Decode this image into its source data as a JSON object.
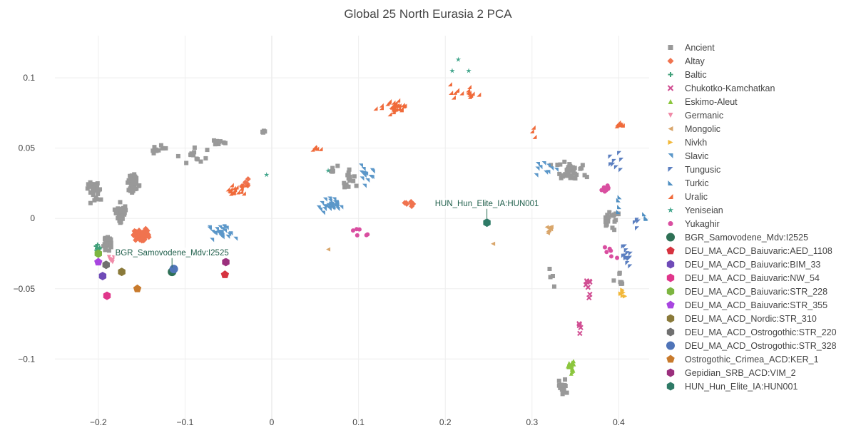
{
  "chart_data": {
    "type": "scatter",
    "title": "Global 25 North Eurasia 2 PCA",
    "xlim": [
      -0.25,
      0.435
    ],
    "ylim": [
      -0.145,
      0.13
    ],
    "x_ticks": [
      -0.2,
      -0.1,
      0,
      0.1,
      0.2,
      0.3,
      0.4
    ],
    "x_tick_labels": [
      "−0.2",
      "−0.1",
      "0",
      "0.1",
      "0.2",
      "0.3",
      "0.4"
    ],
    "y_ticks": [
      -0.1,
      -0.05,
      0,
      0.05,
      0.1
    ],
    "y_tick_labels": [
      "−0.1",
      "−0.05",
      "0",
      "0.05",
      "0.1"
    ],
    "grid": true,
    "legend_position": "right",
    "population_clusters": [
      {
        "name": "Ancient",
        "marker": "square",
        "color": "#999999",
        "clusters": [
          [
            -0.205,
            0.02,
            0.012,
            0.012,
            30
          ],
          [
            -0.16,
            0.025,
            0.012,
            0.012,
            40
          ],
          [
            -0.175,
            0.003,
            0.01,
            0.01,
            40
          ],
          [
            -0.19,
            -0.018,
            0.008,
            0.008,
            25
          ],
          [
            -0.13,
            0.05,
            0.012,
            0.005,
            10
          ],
          [
            -0.09,
            0.045,
            0.025,
            0.008,
            14
          ],
          [
            -0.06,
            0.055,
            0.015,
            0.004,
            10
          ],
          [
            -0.01,
            0.062,
            0.01,
            0.003,
            5
          ],
          [
            0.09,
            0.03,
            0.015,
            0.015,
            14
          ],
          [
            0.07,
            0.035,
            0.01,
            0.005,
            5
          ],
          [
            0.34,
            0.035,
            0.03,
            0.01,
            35
          ],
          [
            0.39,
            0.0,
            0.015,
            0.012,
            20
          ],
          [
            0.335,
            -0.12,
            0.008,
            0.008,
            18
          ],
          [
            0.4,
            -0.045,
            0.008,
            0.008,
            8
          ],
          [
            0.32,
            -0.04,
            0.01,
            0.015,
            4
          ]
        ]
      },
      {
        "name": "Altay",
        "marker": "diamond",
        "color": "#f0734f",
        "clusters": [
          [
            -0.15,
            -0.012,
            0.012,
            0.006,
            60
          ],
          [
            0.16,
            0.01,
            0.015,
            0.006,
            8
          ],
          [
            -0.03,
            0.025,
            0.008,
            0.005,
            6
          ]
        ]
      },
      {
        "name": "Baltic",
        "marker": "cross",
        "color": "#40a07a",
        "clusters": [
          [
            -0.2,
            -0.022,
            0.004,
            0.004,
            10
          ]
        ]
      },
      {
        "name": "Chukotko-Kamchatkan",
        "marker": "x",
        "color": "#d14f93",
        "clusters": [
          [
            0.365,
            -0.05,
            0.008,
            0.01,
            8
          ],
          [
            0.355,
            -0.075,
            0.003,
            0.008,
            5
          ]
        ]
      },
      {
        "name": "Eskimo-Aleut",
        "marker": "triangle-up",
        "color": "#8cc63e",
        "clusters": [
          [
            0.345,
            -0.105,
            0.006,
            0.01,
            20
          ]
        ]
      },
      {
        "name": "Germanic",
        "marker": "triangle-down",
        "color": "#f08ba8",
        "clusters": [
          [
            -0.185,
            -0.03,
            0.006,
            0.005,
            6
          ]
        ]
      },
      {
        "name": "Mongolic",
        "marker": "triangle-left",
        "color": "#d9a66b",
        "clusters": [
          [
            0.32,
            -0.008,
            0.006,
            0.004,
            8
          ],
          [
            0.065,
            -0.022,
            0.001,
            0.001,
            1
          ],
          [
            0.255,
            -0.018,
            0.001,
            0.001,
            1
          ]
        ]
      },
      {
        "name": "Nivkh",
        "marker": "triangle-right",
        "color": "#f2b83a",
        "clusters": [
          [
            0.405,
            -0.053,
            0.006,
            0.006,
            8
          ]
        ]
      },
      {
        "name": "Slavic",
        "marker": "triangle-ne",
        "color": "#5b97c9",
        "clusters": [
          [
            0.07,
            0.01,
            0.02,
            0.007,
            35
          ],
          [
            -0.06,
            -0.01,
            0.025,
            0.01,
            25
          ],
          [
            0.11,
            0.03,
            0.015,
            0.01,
            14
          ],
          [
            0.315,
            0.035,
            0.02,
            0.01,
            10
          ]
        ]
      },
      {
        "name": "Tungusic",
        "marker": "triangle-nw",
        "color": "#5b7fc0",
        "clusters": [
          [
            0.41,
            -0.025,
            0.01,
            0.015,
            14
          ],
          [
            0.395,
            0.04,
            0.015,
            0.01,
            8
          ],
          [
            0.42,
            0.0,
            0.008,
            0.008,
            4
          ]
        ]
      },
      {
        "name": "Turkic",
        "marker": "triangle-sw",
        "color": "#4f8fc2",
        "clusters": [
          [
            0.43,
            0.0,
            0.004,
            0.004,
            3
          ],
          [
            0.4,
            0.01,
            0.008,
            0.008,
            4
          ]
        ]
      },
      {
        "name": "Uralic",
        "marker": "triangle-se",
        "color": "#f06a3a",
        "clusters": [
          [
            0.14,
            0.08,
            0.025,
            0.007,
            30
          ],
          [
            0.22,
            0.09,
            0.025,
            0.007,
            16
          ],
          [
            0.4,
            0.067,
            0.01,
            0.003,
            12
          ],
          [
            -0.04,
            0.02,
            0.02,
            0.006,
            18
          ],
          [
            0.05,
            0.05,
            0.01,
            0.004,
            5
          ],
          [
            0.3,
            0.06,
            0.005,
            0.01,
            3
          ]
        ]
      },
      {
        "name": "Yeniseian",
        "marker": "star",
        "color": "#3fa48a",
        "clusters": [
          [
            0.215,
            0.113,
            0.001,
            0.001,
            1
          ],
          [
            0.208,
            0.105,
            0.001,
            0.001,
            1
          ],
          [
            0.227,
            0.105,
            0.001,
            0.001,
            1
          ],
          [
            0.065,
            0.034,
            0.001,
            0.001,
            1
          ],
          [
            -0.006,
            0.031,
            0.001,
            0.001,
            1
          ]
        ]
      },
      {
        "name": "Yukaghir",
        "marker": "circle",
        "color": "#d94ea0",
        "clusters": [
          [
            0.385,
            0.022,
            0.008,
            0.004,
            8
          ],
          [
            0.1,
            -0.01,
            0.02,
            0.005,
            6
          ],
          [
            0.39,
            -0.025,
            0.01,
            0.008,
            6
          ]
        ]
      }
    ],
    "samples": [
      {
        "name": "BGR_Samovodene_Mdv:I2525",
        "marker": "circle",
        "color": "#2e7055",
        "x": -0.115,
        "y": -0.038
      },
      {
        "name": "DEU_MA_ACD_Baiuvaric:AED_1108",
        "marker": "pentagon",
        "color": "#d63340",
        "x": -0.054,
        "y": -0.04
      },
      {
        "name": "DEU_MA_ACD_Baiuvaric:BIM_33",
        "marker": "hexagon",
        "color": "#6f4bb8",
        "x": -0.195,
        "y": -0.041
      },
      {
        "name": "DEU_MA_ACD_Baiuvaric:NW_54",
        "marker": "hexagon",
        "color": "#e0368b",
        "x": -0.19,
        "y": -0.055
      },
      {
        "name": "DEU_MA_ACD_Baiuvaric:STR_228",
        "marker": "hexagon",
        "color": "#7db541",
        "x": -0.2,
        "y": -0.025
      },
      {
        "name": "DEU_MA_ACD_Baiuvaric:STR_355",
        "marker": "pentagon",
        "color": "#a845e0",
        "x": -0.2,
        "y": -0.031
      },
      {
        "name": "DEU_MA_ACD_Nordic:STR_310",
        "marker": "hexagon",
        "color": "#8a7a3a",
        "x": -0.173,
        "y": -0.038
      },
      {
        "name": "DEU_MA_ACD_Ostrogothic:STR_220",
        "marker": "hexagon",
        "color": "#707070",
        "x": -0.191,
        "y": -0.033
      },
      {
        "name": "DEU_MA_ACD_Ostrogothic:STR_328",
        "marker": "circle",
        "color": "#4f74b8",
        "x": -0.113,
        "y": -0.036
      },
      {
        "name": "Ostrogothic_Crimea_ACD:KER_1",
        "marker": "pentagon",
        "color": "#c87a2c",
        "x": -0.155,
        "y": -0.05
      },
      {
        "name": "Gepidian_SRB_ACD:VIM_2",
        "marker": "hexagon",
        "color": "#9b2f7d",
        "x": -0.053,
        "y": -0.031
      },
      {
        "name": "HUN_Hun_Elite_IA:HUN001",
        "marker": "hexagon",
        "color": "#2e7a66",
        "x": 0.248,
        "y": -0.003
      }
    ],
    "annotations": [
      {
        "text": "BGR_Samovodene_Mdv:I2525",
        "x": -0.115,
        "y": -0.038
      },
      {
        "text": "HUN_Hun_Elite_IA:HUN001",
        "x": 0.248,
        "y": -0.003
      }
    ]
  }
}
